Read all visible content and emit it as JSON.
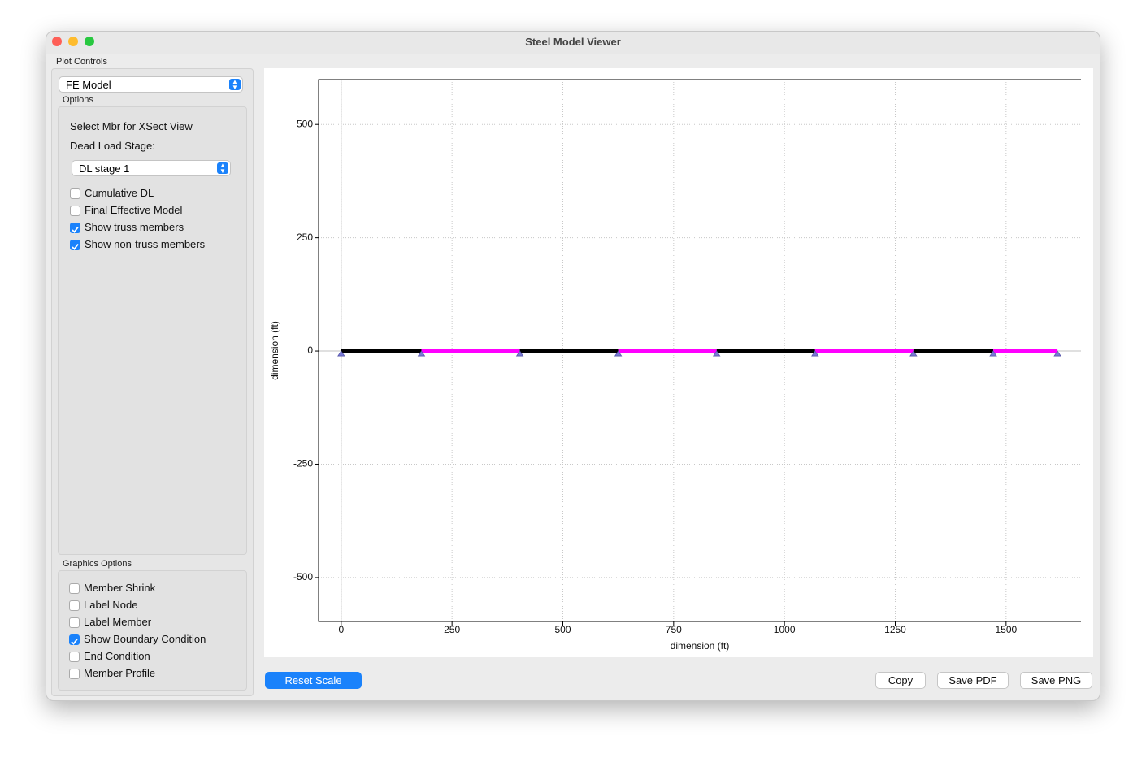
{
  "window": {
    "title": "Steel Model Viewer"
  },
  "plot_controls": {
    "label": "Plot Controls",
    "model_select": "FE Model",
    "options": {
      "label": "Options",
      "select_member": "Select Mbr for XSect View",
      "dead_load_label": "Dead Load Stage:",
      "dead_load_select": "DL stage 1",
      "checkboxes": [
        {
          "label": "Cumulative DL",
          "checked": false
        },
        {
          "label": "Final Effective Model",
          "checked": false
        },
        {
          "label": "Show truss members",
          "checked": true
        },
        {
          "label": "Show non-truss members",
          "checked": true
        }
      ]
    },
    "graphics": {
      "label": "Graphics Options",
      "checkboxes": [
        {
          "label": "Member Shrink",
          "checked": false
        },
        {
          "label": "Label Node",
          "checked": false
        },
        {
          "label": "Label Member",
          "checked": false
        },
        {
          "label": "Show Boundary Condition",
          "checked": true
        },
        {
          "label": "End Condition",
          "checked": false
        },
        {
          "label": "Member Profile",
          "checked": false
        }
      ]
    }
  },
  "chart_data": {
    "type": "frame",
    "xlabel": "dimension (ft)",
    "ylabel": "dimension (ft)",
    "x": [
      0,
      181,
      403,
      625,
      847,
      1069,
      1291,
      1471,
      1616
    ],
    "series": [
      {
        "color": "#000000",
        "values": [
          0,
          0,
          null,
          null,
          null,
          null,
          null,
          null,
          null
        ]
      },
      {
        "color": "#ff00ff",
        "values": [
          null,
          0,
          0,
          null,
          null,
          null,
          null,
          null,
          null
        ]
      },
      {
        "color": "#000000",
        "values": [
          null,
          null,
          0,
          0,
          null,
          null,
          null,
          null,
          null
        ]
      },
      {
        "color": "#ff00ff",
        "values": [
          null,
          null,
          null,
          0,
          0,
          null,
          null,
          null,
          null
        ]
      },
      {
        "color": "#000000",
        "values": [
          null,
          null,
          null,
          null,
          0,
          0,
          null,
          null,
          null
        ]
      },
      {
        "color": "#ff00ff",
        "values": [
          null,
          null,
          null,
          null,
          null,
          0,
          0,
          null,
          null
        ]
      },
      {
        "color": "#000000",
        "values": [
          null,
          null,
          null,
          null,
          null,
          null,
          0,
          0,
          null
        ]
      },
      {
        "color": "#ff00ff",
        "values": [
          null,
          null,
          null,
          null,
          null,
          null,
          null,
          0,
          0
        ]
      }
    ],
    "supports": {
      "color": "#7a7ad6",
      "values": [
        0,
        0,
        0,
        0,
        0,
        0,
        0,
        0,
        0
      ]
    },
    "xlim": [
      -51,
      1669
    ],
    "ylim": [
      -597,
      599
    ],
    "xticks": [
      0,
      250,
      500,
      750,
      1000,
      1250,
      1500
    ],
    "yticks": [
      -500,
      -250,
      0,
      250,
      500
    ],
    "grid": true
  },
  "buttons": {
    "reset": "Reset Scale",
    "copy": "Copy",
    "save_pdf": "Save PDF",
    "save_png": "Save PNG"
  }
}
